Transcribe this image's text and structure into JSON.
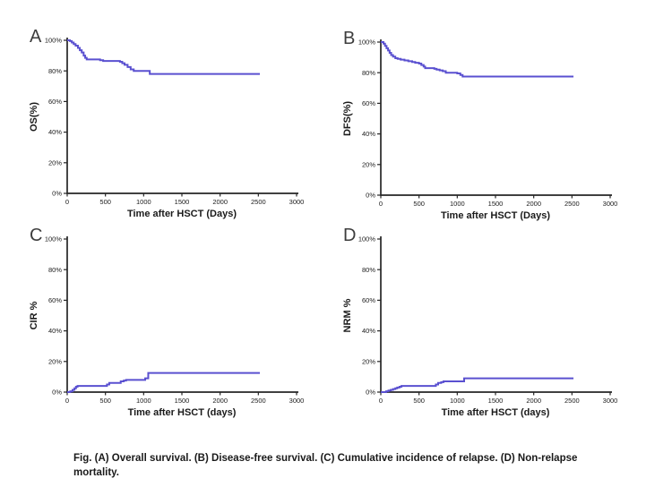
{
  "figure": {
    "caption": "Fig. (A) Overall survival. (B) Disease-free survival. (C) Cumulative incidence of relapse. (D) Non-relapse mortality."
  },
  "colors": {
    "curve": "#5a50d0",
    "axis": "#262626",
    "panel_letter": "#3d3d3d",
    "background": "#ffffff"
  },
  "chart_data": [
    {
      "type": "line",
      "panel": "A",
      "name": "overall-survival",
      "ylabel": "OS(%)",
      "xlabel": "Time after HSCT (Days)",
      "xlim": [
        0,
        3000
      ],
      "ylim": [
        0,
        100
      ],
      "x_ticks": [
        0,
        500,
        1000,
        1500,
        2000,
        2500,
        3000
      ],
      "y_ticks": [
        {
          "value": 0,
          "label": "0%"
        },
        {
          "value": 20,
          "label": "20%"
        },
        {
          "value": 40,
          "label": "40%"
        },
        {
          "value": 60,
          "label": "60%"
        },
        {
          "value": 80,
          "label": "80%"
        },
        {
          "value": 100,
          "label": "100%"
        }
      ],
      "step": "after",
      "grid": false,
      "legend": null,
      "points": [
        [
          0,
          100
        ],
        [
          35,
          99.5
        ],
        [
          60,
          98.5
        ],
        [
          85,
          97.5
        ],
        [
          110,
          96.5
        ],
        [
          140,
          95
        ],
        [
          165,
          93.5
        ],
        [
          190,
          92
        ],
        [
          215,
          90
        ],
        [
          235,
          88.5
        ],
        [
          255,
          87.5
        ],
        [
          430,
          87
        ],
        [
          470,
          86.5
        ],
        [
          690,
          86
        ],
        [
          720,
          85
        ],
        [
          750,
          84
        ],
        [
          790,
          82.5
        ],
        [
          830,
          81
        ],
        [
          870,
          80
        ],
        [
          1080,
          78
        ],
        [
          2520,
          78
        ]
      ]
    },
    {
      "type": "line",
      "panel": "B",
      "name": "disease-free-survival",
      "ylabel": "DFS(%)",
      "xlabel": "Time after HSCT (Days)",
      "xlim": [
        0,
        3000
      ],
      "ylim": [
        0,
        100
      ],
      "x_ticks": [
        0,
        500,
        1000,
        1500,
        2000,
        2500,
        3000
      ],
      "y_ticks": [
        {
          "value": 0,
          "label": "0%"
        },
        {
          "value": 20,
          "label": "20%"
        },
        {
          "value": 40,
          "label": "40%"
        },
        {
          "value": 60,
          "label": "60%"
        },
        {
          "value": 80,
          "label": "80%"
        },
        {
          "value": 100,
          "label": "100%"
        }
      ],
      "step": "after",
      "grid": false,
      "legend": null,
      "points": [
        [
          0,
          100
        ],
        [
          35,
          99
        ],
        [
          55,
          97.5
        ],
        [
          75,
          96
        ],
        [
          95,
          94.5
        ],
        [
          115,
          93
        ],
        [
          135,
          91.5
        ],
        [
          160,
          90.5
        ],
        [
          190,
          89.5
        ],
        [
          220,
          89
        ],
        [
          260,
          88.5
        ],
        [
          310,
          88
        ],
        [
          360,
          87.5
        ],
        [
          410,
          87
        ],
        [
          450,
          86.5
        ],
        [
          500,
          86
        ],
        [
          530,
          85
        ],
        [
          560,
          84
        ],
        [
          580,
          83
        ],
        [
          700,
          82.5
        ],
        [
          730,
          82
        ],
        [
          770,
          81.5
        ],
        [
          810,
          81
        ],
        [
          850,
          80
        ],
        [
          1000,
          79.5
        ],
        [
          1040,
          78.5
        ],
        [
          1070,
          77.5
        ],
        [
          2520,
          77.5
        ]
      ]
    },
    {
      "type": "line",
      "panel": "C",
      "name": "cumulative-incidence-of-relapse",
      "ylabel": "CIR %",
      "xlabel": "Time after HSCT (days)",
      "xlim": [
        0,
        3000
      ],
      "ylim": [
        0,
        100
      ],
      "x_ticks": [
        0,
        500,
        1000,
        1500,
        2000,
        2500,
        3000
      ],
      "y_ticks": [
        {
          "value": 0,
          "label": "0%"
        },
        {
          "value": 20,
          "label": "20%"
        },
        {
          "value": 40,
          "label": "40%"
        },
        {
          "value": 60,
          "label": "60%"
        },
        {
          "value": 80,
          "label": "80%"
        },
        {
          "value": 100,
          "label": "100%"
        }
      ],
      "step": "after",
      "grid": false,
      "legend": null,
      "points": [
        [
          0,
          0
        ],
        [
          40,
          0.5
        ],
        [
          70,
          1.5
        ],
        [
          95,
          2.5
        ],
        [
          115,
          3.5
        ],
        [
          135,
          4
        ],
        [
          520,
          5
        ],
        [
          550,
          6
        ],
        [
          700,
          7
        ],
        [
          740,
          7.5
        ],
        [
          770,
          8
        ],
        [
          1020,
          9
        ],
        [
          1060,
          12.5
        ],
        [
          2520,
          12.5
        ]
      ]
    },
    {
      "type": "line",
      "panel": "D",
      "name": "non-relapse-mortality",
      "ylabel": "NRM %",
      "xlabel": "Time after HSCT (days)",
      "xlim": [
        0,
        3000
      ],
      "ylim": [
        0,
        100
      ],
      "x_ticks": [
        0,
        500,
        1000,
        1500,
        2000,
        2500,
        3000
      ],
      "y_ticks": [
        {
          "value": 0,
          "label": "0%"
        },
        {
          "value": 20,
          "label": "20%"
        },
        {
          "value": 40,
          "label": "40%"
        },
        {
          "value": 60,
          "label": "60%"
        },
        {
          "value": 80,
          "label": "80%"
        },
        {
          "value": 100,
          "label": "100%"
        }
      ],
      "step": "after",
      "grid": false,
      "legend": null,
      "points": [
        [
          0,
          0
        ],
        [
          70,
          0.5
        ],
        [
          100,
          1
        ],
        [
          130,
          1.5
        ],
        [
          160,
          2
        ],
        [
          190,
          2.5
        ],
        [
          215,
          3
        ],
        [
          245,
          3.5
        ],
        [
          270,
          4
        ],
        [
          720,
          5
        ],
        [
          750,
          6
        ],
        [
          790,
          6.5
        ],
        [
          820,
          7
        ],
        [
          1090,
          9
        ],
        [
          2520,
          9
        ]
      ]
    }
  ]
}
